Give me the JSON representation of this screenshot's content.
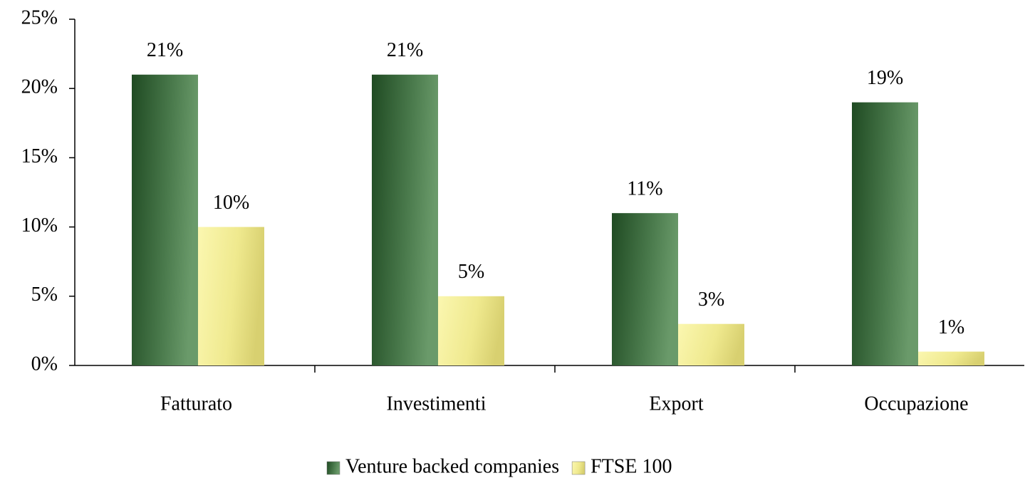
{
  "chart_data": {
    "type": "bar",
    "categories": [
      "Fatturato",
      "Investimenti",
      "Export",
      "Occupazione"
    ],
    "series": [
      {
        "name": "Venture backed companies",
        "color": "#3f6b42",
        "values": [
          21,
          21,
          11,
          19
        ],
        "value_labels": [
          "21%",
          "21%",
          "11%",
          "19%"
        ]
      },
      {
        "name": "FTSE 100",
        "color": "#f2ee9a",
        "values": [
          10,
          5,
          3,
          1
        ],
        "value_labels": [
          "10%",
          "5%",
          "3%",
          "1%"
        ]
      }
    ],
    "ylim": [
      0,
      25
    ],
    "yticks": [
      {
        "value": 0,
        "label": "0%"
      },
      {
        "value": 5,
        "label": "5%"
      },
      {
        "value": 10,
        "label": "10%"
      },
      {
        "value": 15,
        "label": "15%"
      },
      {
        "value": 20,
        "label": "20%"
      },
      {
        "value": 25,
        "label": "25%"
      }
    ],
    "legend": "bottom"
  }
}
